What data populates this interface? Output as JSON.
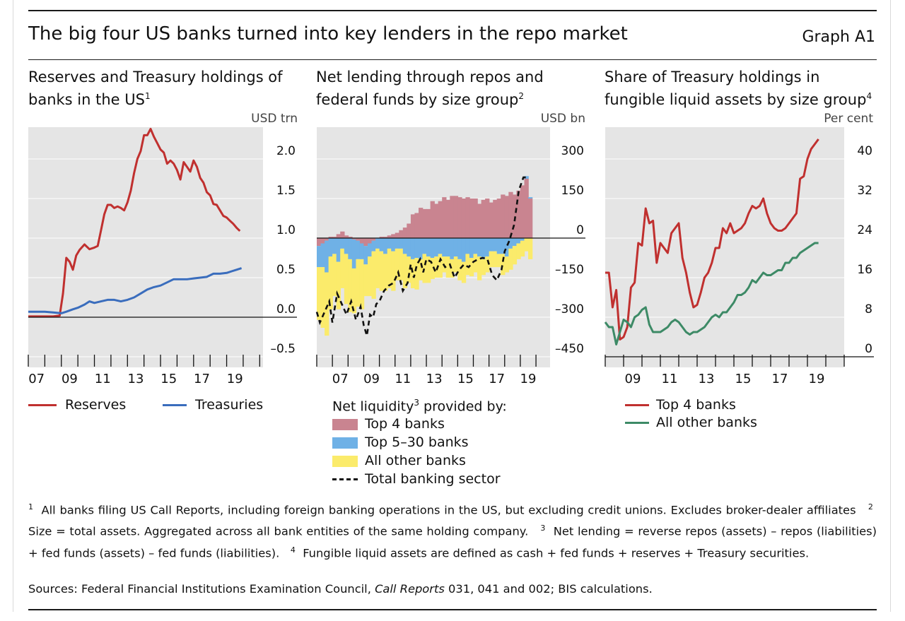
{
  "header": {
    "title": "The big four US banks turned into key lenders in the repo market",
    "graph_id": "Graph A1"
  },
  "colors": {
    "red": "#c0302f",
    "blue": "#3a6dbd",
    "green": "#3d8a66",
    "pink": "#c98490",
    "lightblue": "#6fb1e6",
    "yellow": "#fbeb6b",
    "panel_bg": "#e5e5e5"
  },
  "panels": [
    {
      "title": "Reserves and Treasury holdings of banks in the US",
      "sup": "1",
      "unit": "USD trn",
      "legend": [
        {
          "label": "Reserves",
          "color": "#c0302f"
        },
        {
          "label": "Treasuries",
          "color": "#3a6dbd"
        }
      ]
    },
    {
      "title": "Net lending through repos and federal funds by size group",
      "sup": "2",
      "unit": "USD bn",
      "legend_title": "Net liquidity",
      "legend_title_sup": "3",
      "legend_title_suffix": " provided by:",
      "legend": [
        {
          "label": "Top 4 banks",
          "kind": "box",
          "color": "#c98490"
        },
        {
          "label": "Top 5–30 banks",
          "kind": "box",
          "color": "#6fb1e6"
        },
        {
          "label": "All other banks",
          "kind": "box",
          "color": "#fbeb6b"
        },
        {
          "label": "Total banking sector",
          "kind": "dash",
          "color": "#111111"
        }
      ]
    },
    {
      "title": "Share of Treasury holdings in fungible liquid assets by size group",
      "sup": "4",
      "unit": "Per cent",
      "legend": [
        {
          "label": "Top 4 banks",
          "color": "#c0302f"
        },
        {
          "label": "All other banks",
          "color": "#3d8a66"
        }
      ]
    }
  ],
  "footnotes": [
    {
      "sup": "1",
      "text": "All banks filing US Call Reports, including foreign banking operations in the US, but excluding credit unions. Excludes broker-dealer affiliates"
    },
    {
      "sup": "2",
      "text": "Size = total assets. Aggregated across all bank entities of the same holding company."
    },
    {
      "sup": "3",
      "text": "Net lending = reverse repos (assets) – repos (liabilities) + fed funds (assets) – fed funds (liabilities)."
    },
    {
      "sup": "4",
      "text": "Fungible liquid assets are defined as cash + fed funds + reserves + Treasury securities."
    }
  ],
  "sources": {
    "prefix": "Sources: Federal Financial Institutions Examination Council, ",
    "italic": "Call Reports",
    "suffix": " 031, 041 and 002; BIS calculations."
  },
  "chart_data": [
    {
      "type": "line",
      "title": "Reserves and Treasury holdings of banks in the US",
      "ylabel": "USD trn",
      "ylim": [
        -0.5,
        2.5
      ],
      "yticks": [
        2.0,
        1.5,
        1.0,
        0.5,
        0.0,
        -0.5
      ],
      "ytick_labels": [
        "2.0",
        "1.5",
        "1.0",
        "0.5",
        "0.0",
        "–0.5"
      ],
      "xlim": [
        2006.0,
        2020.2
      ],
      "xtick_labels": [
        "07",
        "09",
        "11",
        "13",
        "15",
        "17",
        "19"
      ],
      "xtick_positions": [
        2006.5,
        2008.5,
        2010.5,
        2012.5,
        2014.5,
        2016.5,
        2018.5
      ],
      "legend_position": "bottom",
      "series": [
        {
          "name": "Reserves",
          "x": [
            2006.0,
            2007.0,
            2007.5,
            2007.9,
            2008.1,
            2008.3,
            2008.5,
            2008.7,
            2008.9,
            2009.1,
            2009.4,
            2009.7,
            2010.0,
            2010.2,
            2010.4,
            2010.6,
            2010.8,
            2011.0,
            2011.2,
            2011.4,
            2011.6,
            2011.8,
            2012.0,
            2012.2,
            2012.4,
            2012.6,
            2012.8,
            2013.0,
            2013.2,
            2013.4,
            2013.6,
            2013.8,
            2014.0,
            2014.2,
            2014.4,
            2014.6,
            2014.8,
            2015.0,
            2015.2,
            2015.4,
            2015.6,
            2015.8,
            2016.0,
            2016.2,
            2016.4,
            2016.6,
            2016.8,
            2017.0,
            2017.2,
            2017.4,
            2017.6,
            2017.8,
            2018.0,
            2018.2,
            2018.4,
            2018.6,
            2018.8
          ],
          "values": [
            0.01,
            0.01,
            0.01,
            0.02,
            0.3,
            0.75,
            0.7,
            0.6,
            0.78,
            0.85,
            0.92,
            0.86,
            0.88,
            0.9,
            1.1,
            1.3,
            1.42,
            1.42,
            1.38,
            1.4,
            1.38,
            1.35,
            1.45,
            1.6,
            1.82,
            2.0,
            2.1,
            2.3,
            2.3,
            2.38,
            2.28,
            2.2,
            2.12,
            2.08,
            1.94,
            1.98,
            1.94,
            1.86,
            1.74,
            1.96,
            1.9,
            1.84,
            1.98,
            1.9,
            1.76,
            1.7,
            1.58,
            1.54,
            1.43,
            1.42,
            1.35,
            1.28,
            1.26,
            1.22,
            1.18,
            1.13,
            1.09
          ]
        },
        {
          "name": "Treasuries",
          "x": [
            2006.0,
            2007.0,
            2007.5,
            2008.0,
            2008.3,
            2008.7,
            2009.0,
            2009.4,
            2009.7,
            2010.0,
            2010.4,
            2010.8,
            2011.2,
            2011.6,
            2012.0,
            2012.4,
            2012.8,
            2013.2,
            2013.6,
            2014.0,
            2014.4,
            2014.8,
            2015.2,
            2015.6,
            2016.0,
            2016.4,
            2016.8,
            2017.2,
            2017.6,
            2018.0,
            2018.3,
            2018.6,
            2018.9
          ],
          "values": [
            0.07,
            0.07,
            0.06,
            0.05,
            0.07,
            0.1,
            0.12,
            0.16,
            0.2,
            0.18,
            0.2,
            0.22,
            0.22,
            0.2,
            0.22,
            0.25,
            0.3,
            0.35,
            0.38,
            0.4,
            0.44,
            0.48,
            0.48,
            0.48,
            0.49,
            0.5,
            0.51,
            0.55,
            0.55,
            0.56,
            0.58,
            0.6,
            0.62
          ]
        }
      ]
    },
    {
      "type": "bar",
      "stacked": true,
      "title": "Net lending through repos and federal funds by size group",
      "ylabel": "USD bn",
      "ylim": [
        -450,
        450
      ],
      "yticks": [
        300,
        150,
        0,
        -150,
        -300,
        -450
      ],
      "ytick_labels": [
        "300",
        "150",
        "0",
        "–150",
        "–300",
        "–450"
      ],
      "xlim": [
        2005.0,
        2019.9
      ],
      "xtick_labels": [
        "07",
        "09",
        "11",
        "13",
        "15",
        "17",
        "19"
      ],
      "xtick_positions": [
        2006.5,
        2008.5,
        2010.5,
        2012.5,
        2014.5,
        2016.5,
        2018.5
      ],
      "legend_position": "bottom",
      "x": [
        2005.0,
        2005.25,
        2005.5,
        2005.75,
        2006.0,
        2006.25,
        2006.5,
        2006.75,
        2007.0,
        2007.25,
        2007.5,
        2007.75,
        2008.0,
        2008.25,
        2008.5,
        2008.75,
        2009.0,
        2009.25,
        2009.5,
        2009.75,
        2010.0,
        2010.25,
        2010.5,
        2010.75,
        2011.0,
        2011.25,
        2011.5,
        2011.75,
        2012.0,
        2012.25,
        2012.5,
        2012.75,
        2013.0,
        2013.25,
        2013.5,
        2013.75,
        2014.0,
        2014.25,
        2014.5,
        2014.75,
        2015.0,
        2015.25,
        2015.5,
        2015.75,
        2016.0,
        2016.25,
        2016.5,
        2016.75,
        2017.0,
        2017.25,
        2017.5,
        2017.75,
        2018.0,
        2018.25,
        2018.5
      ],
      "series": [
        {
          "name": "Top 4 banks",
          "values": [
            -30,
            -20,
            -10,
            5,
            5,
            15,
            25,
            10,
            5,
            -5,
            -10,
            -20,
            -30,
            -20,
            -10,
            0,
            5,
            5,
            10,
            15,
            20,
            30,
            40,
            55,
            90,
            95,
            115,
            110,
            110,
            140,
            130,
            140,
            155,
            145,
            160,
            160,
            155,
            150,
            155,
            150,
            150,
            130,
            145,
            150,
            135,
            145,
            150,
            165,
            160,
            175,
            165,
            180,
            200,
            225,
            150
          ]
        },
        {
          "name": "Top 5–30 banks",
          "values": [
            -80,
            -90,
            -120,
            -70,
            -60,
            -90,
            -40,
            -60,
            -80,
            -110,
            -70,
            -60,
            -70,
            -50,
            -40,
            -40,
            -50,
            -60,
            -40,
            -50,
            -40,
            -40,
            -60,
            -70,
            -80,
            -75,
            -80,
            -60,
            -70,
            -75,
            -70,
            -60,
            -70,
            -70,
            -80,
            -70,
            -80,
            -90,
            -60,
            -75,
            -60,
            -70,
            -80,
            -70,
            -50,
            -50,
            -60,
            -60,
            -70,
            -40,
            -30,
            -20,
            -10,
            10,
            5
          ]
        },
        {
          "name": "All other banks",
          "values": [
            -200,
            -230,
            -240,
            -200,
            -160,
            -180,
            -150,
            -190,
            -200,
            -170,
            -180,
            -190,
            -120,
            -150,
            -180,
            -150,
            -150,
            -140,
            -150,
            -150,
            -120,
            -120,
            -130,
            -100,
            -110,
            -120,
            -80,
            -110,
            -100,
            -80,
            -80,
            -90,
            -60,
            -80,
            -70,
            -60,
            -80,
            -80,
            -80,
            -70,
            -70,
            -90,
            -60,
            -60,
            -60,
            -60,
            -50,
            -80,
            -60,
            -80,
            -70,
            -60,
            -60,
            -50,
            -80
          ]
        },
        {
          "name": "Total banking sector",
          "type": "line",
          "x": [
            2005.0,
            2005.2,
            2005.5,
            2005.8,
            2006.0,
            2006.3,
            2006.6,
            2006.9,
            2007.2,
            2007.5,
            2007.8,
            2008.0,
            2008.2,
            2008.4,
            2008.6,
            2008.8,
            2009.0,
            2009.3,
            2009.6,
            2009.9,
            2010.2,
            2010.5,
            2010.8,
            2011.0,
            2011.2,
            2011.4,
            2011.6,
            2011.8,
            2012.0,
            2012.3,
            2012.6,
            2012.9,
            2013.2,
            2013.5,
            2013.8,
            2014.1,
            2014.4,
            2014.7,
            2015.0,
            2015.3,
            2015.6,
            2015.9,
            2016.2,
            2016.5,
            2016.8,
            2017.0,
            2017.3,
            2017.6,
            2017.9,
            2018.2,
            2018.5
          ],
          "values": [
            -280,
            -320,
            -280,
            -240,
            -320,
            -210,
            -250,
            -290,
            -240,
            -310,
            -260,
            -330,
            -370,
            -290,
            -300,
            -250,
            -240,
            -200,
            -180,
            -170,
            -130,
            -200,
            -170,
            -100,
            -150,
            -100,
            -80,
            -130,
            -80,
            -90,
            -130,
            -80,
            -110,
            -100,
            -150,
            -120,
            -100,
            -110,
            -90,
            -80,
            -75,
            -80,
            -140,
            -160,
            -120,
            -50,
            -10,
            50,
            180,
            230,
            230
          ]
        }
      ]
    },
    {
      "type": "line",
      "title": "Share of Treasury holdings in fungible liquid assets by size group",
      "ylabel": "Per cent",
      "ylim": [
        0,
        48
      ],
      "yticks": [
        40,
        32,
        24,
        16,
        8,
        0
      ],
      "ytick_labels": [
        "40",
        "32",
        "24",
        "16",
        "8",
        "0"
      ],
      "xlim": [
        2007.0,
        2020.0
      ],
      "xtick_labels": [
        "09",
        "11",
        "13",
        "15",
        "17",
        "19"
      ],
      "xtick_positions": [
        2008.5,
        2010.5,
        2012.5,
        2014.5,
        2016.5,
        2018.5
      ],
      "legend_position": "bottom",
      "series": [
        {
          "name": "Top 4 banks",
          "x": [
            2007.0,
            2007.2,
            2007.4,
            2007.6,
            2007.8,
            2008.0,
            2008.2,
            2008.4,
            2008.6,
            2008.8,
            2009.0,
            2009.2,
            2009.4,
            2009.6,
            2009.8,
            2010.0,
            2010.2,
            2010.4,
            2010.6,
            2010.8,
            2011.0,
            2011.2,
            2011.4,
            2011.6,
            2011.8,
            2012.0,
            2012.2,
            2012.4,
            2012.6,
            2012.8,
            2013.0,
            2013.2,
            2013.4,
            2013.6,
            2013.8,
            2014.0,
            2014.2,
            2014.4,
            2014.6,
            2014.8,
            2015.0,
            2015.2,
            2015.4,
            2015.6,
            2015.8,
            2016.0,
            2016.2,
            2016.4,
            2016.6,
            2016.8,
            2017.0,
            2017.2,
            2017.4,
            2017.6,
            2017.8,
            2018.0,
            2018.2,
            2018.4,
            2018.6
          ],
          "values": [
            17,
            17,
            10,
            13.5,
            3.5,
            4,
            6,
            14,
            15,
            23,
            22.5,
            30,
            27,
            27.5,
            19,
            23,
            22,
            21,
            25,
            26,
            27,
            20,
            17,
            13,
            10,
            10.5,
            13,
            16,
            17,
            19,
            22,
            22,
            26,
            25,
            27,
            25,
            25.5,
            26,
            27,
            29,
            30.5,
            30,
            30.5,
            32,
            29,
            27,
            26,
            25.5,
            25.5,
            26,
            27,
            28,
            29,
            36,
            36.5,
            40,
            42,
            43,
            44
          ]
        },
        {
          "name": "All other banks",
          "x": [
            2007.0,
            2007.2,
            2007.4,
            2007.6,
            2007.8,
            2008.0,
            2008.2,
            2008.4,
            2008.6,
            2008.8,
            2009.0,
            2009.2,
            2009.4,
            2009.6,
            2009.8,
            2010.0,
            2010.2,
            2010.4,
            2010.6,
            2010.8,
            2011.0,
            2011.2,
            2011.4,
            2011.6,
            2011.8,
            2012.0,
            2012.2,
            2012.4,
            2012.6,
            2012.8,
            2013.0,
            2013.2,
            2013.4,
            2013.6,
            2013.8,
            2014.0,
            2014.2,
            2014.4,
            2014.6,
            2014.8,
            2015.0,
            2015.2,
            2015.4,
            2015.6,
            2015.8,
            2016.0,
            2016.2,
            2016.4,
            2016.6,
            2016.8,
            2017.0,
            2017.2,
            2017.4,
            2017.6,
            2017.8,
            2018.0,
            2018.2,
            2018.4,
            2018.6
          ],
          "values": [
            7,
            6,
            6,
            2.5,
            5,
            7.5,
            7,
            6,
            8,
            8.5,
            9.5,
            10,
            6.5,
            5,
            5,
            5,
            5.5,
            6,
            7,
            7.5,
            7,
            6,
            5,
            4.5,
            5,
            5,
            5.5,
            6,
            7,
            8,
            8.5,
            8,
            9,
            9,
            10,
            11,
            12.5,
            12.5,
            13,
            14,
            15.5,
            15,
            16,
            17,
            16.5,
            16.5,
            17,
            17.5,
            17.5,
            19,
            19,
            20,
            20,
            21,
            21.5,
            22,
            22.5,
            23,
            23
          ]
        }
      ]
    }
  ]
}
